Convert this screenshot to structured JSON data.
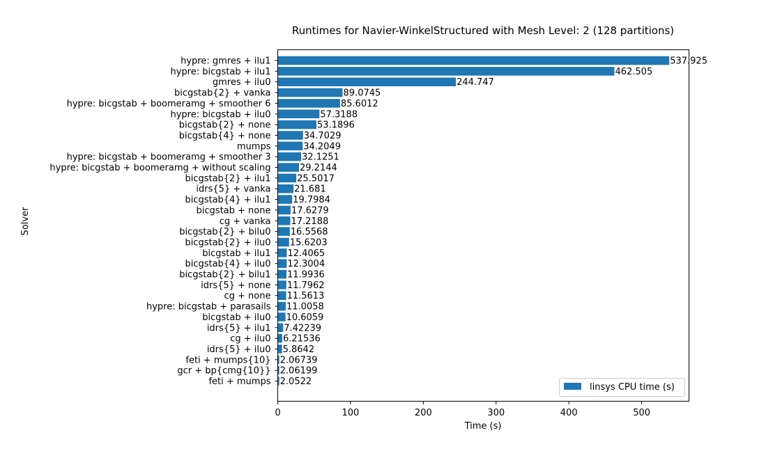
{
  "chart_data": {
    "type": "bar",
    "orientation": "horizontal",
    "title": "Runtimes for Navier-WinkelStructured with Mesh Level: 2 (128 partitions)",
    "xlabel": "Time (s)",
    "ylabel": "Solver",
    "xlim": [
      0,
      565
    ],
    "xticks": [
      "0",
      "100",
      "200",
      "300",
      "400",
      "500"
    ],
    "grid": false,
    "legend_position": "lower right",
    "bar_color": "#1f77b4",
    "series": [
      {
        "name": "linsys CPU time (s)",
        "values": [
          537.925,
          462.505,
          244.747,
          89.0745,
          85.6012,
          57.3188,
          53.1896,
          34.7029,
          34.2049,
          32.1251,
          29.2144,
          25.5017,
          21.681,
          19.7984,
          17.6279,
          17.2188,
          16.5568,
          15.6203,
          12.4065,
          12.3004,
          11.9936,
          11.7962,
          11.5613,
          11.0058,
          10.6059,
          7.42239,
          6.21536,
          5.8642,
          2.06739,
          2.06199,
          2.0522
        ]
      }
    ],
    "categories": [
      "hypre: gmres + ilu1",
      "hypre: bicgstab + ilu1",
      "gmres + ilu0",
      "bicgstab{2} + vanka",
      "hypre: bicgstab + boomeramg + smoother 6",
      "hypre: bicgstab + ilu0",
      "bicgstab{2} + none",
      "bicgstab{4} + none",
      "mumps",
      "hypre: bicgstab + boomeramg + smoother 3",
      "hypre: bicgstab + boomeramg + without scaling",
      "bicgstab{2} + ilu1",
      "idrs{5} + vanka",
      "bicgstab{4} + ilu1",
      "bicgstab + none",
      "cg + vanka",
      "bicgstab{2} + bilu0",
      "bicgstab{2} + ilu0",
      "bicgstab + ilu1",
      "bicgstab{4} + ilu0",
      "bicgstab{2} + bilu1",
      "idrs{5} + none",
      "cg + none",
      "hypre: bicgstab + parasails",
      "bicgstab + ilu0",
      "idrs{5} + ilu1",
      "cg + ilu0",
      "idrs{5} + ilu0",
      "feti + mumps{10}",
      "gcr + bp{cmg{10}}",
      "feti + mumps"
    ],
    "value_labels": [
      "537.925",
      "462.505",
      "244.747",
      "89.0745",
      "85.6012",
      "57.3188",
      "53.1896",
      "34.7029",
      "34.2049",
      "32.1251",
      "29.2144",
      "25.5017",
      "21.681",
      "19.7984",
      "17.6279",
      "17.2188",
      "16.5568",
      "15.6203",
      "12.4065",
      "12.3004",
      "11.9936",
      "11.7962",
      "11.5613",
      "11.0058",
      "10.6059",
      "7.42239",
      "6.21536",
      "5.8642",
      "2.06739",
      "2.06199",
      "2.0522"
    ]
  }
}
